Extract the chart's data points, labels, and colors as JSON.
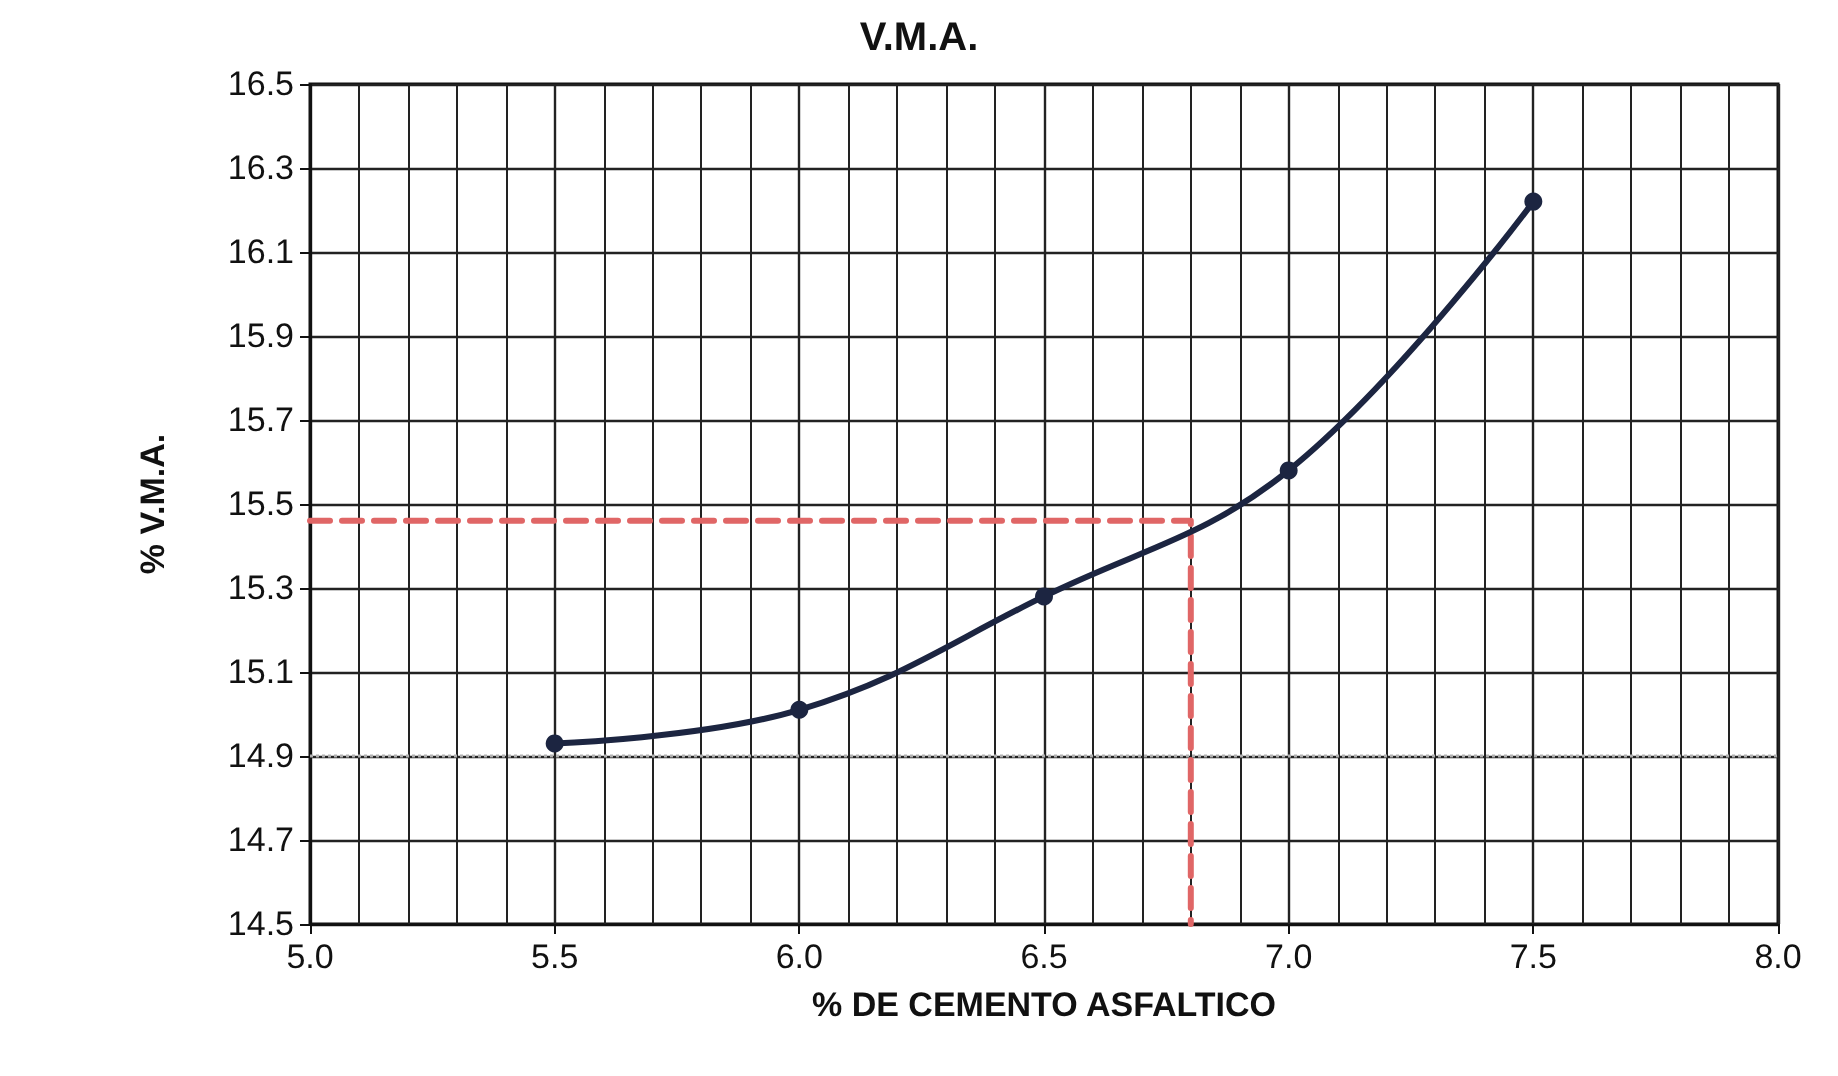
{
  "chart_data": {
    "type": "line",
    "title": "V.M.A.",
    "xlabel": "% DE CEMENTO ASFALTICO",
    "ylabel": "% V.M.A.",
    "xlim": [
      5.0,
      8.0
    ],
    "ylim": [
      14.5,
      16.5
    ],
    "xticks": [
      {
        "value": 5,
        "label": "5.0"
      },
      {
        "value": 5.5,
        "label": "5.5"
      },
      {
        "value": 6,
        "label": "6.0"
      },
      {
        "value": 6.5,
        "label": "6.5"
      },
      {
        "value": 7,
        "label": "7.0"
      },
      {
        "value": 7.5,
        "label": "7.5"
      },
      {
        "value": 8,
        "label": "8.0"
      }
    ],
    "yticks": [
      14.5,
      14.7,
      14.9,
      15.1,
      15.3,
      15.5,
      15.7,
      15.9,
      16.1,
      16.3,
      16.5
    ],
    "grid": true,
    "marker": "circle",
    "line_style": "solid",
    "series": [
      {
        "color": "#1c2541",
        "x": [
          5.5,
          6.0,
          6.5,
          7.0,
          7.5
        ],
        "values": [
          14.93,
          15.01,
          15.28,
          15.58,
          16.22
        ]
      },
      {
        "color": "#e06666",
        "x": [
          5.0,
          6.8,
          6.8
        ],
        "values": [
          15.46,
          15.46,
          14.5
        ],
        "line_style": "dashed",
        "marker": "none"
      }
    ],
    "ref_lines": [
      {
        "axis": "y",
        "value": 14.9,
        "color": "#b0b0b0",
        "line_style": "dotted"
      }
    ]
  }
}
